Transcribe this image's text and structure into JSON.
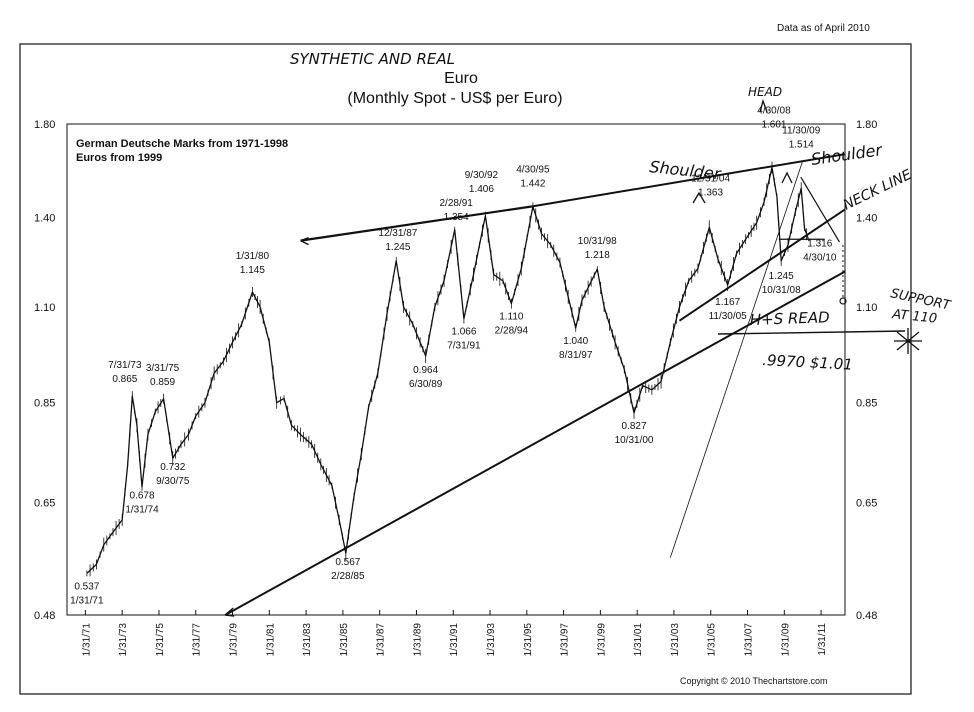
{
  "header": {
    "data_as_of": "Data as of April 2010"
  },
  "footer": {
    "copyright": "Copyright © 2010 Thechartstore.com"
  },
  "chart_data": {
    "type": "line",
    "title": "Euro",
    "subtitle": "(Monthly Spot - US$ per Euro)",
    "scale": "log",
    "ylim": [
      0.48,
      1.8
    ],
    "grid": false,
    "yticks": [
      "1.80",
      "1.40",
      "1.10",
      "0.85",
      "0.65",
      "0.48"
    ],
    "ytick_values": [
      1.8,
      1.4,
      1.1,
      0.85,
      0.65,
      0.48
    ],
    "xticks": [
      "1/31/71",
      "1/31/73",
      "1/31/75",
      "1/31/77",
      "1/31/79",
      "1/31/81",
      "1/31/83",
      "1/31/85",
      "1/31/87",
      "1/31/89",
      "1/31/91",
      "1/31/93",
      "1/31/95",
      "1/31/97",
      "1/31/99",
      "1/31/01",
      "1/31/03",
      "1/31/05",
      "1/31/07",
      "1/31/09",
      "1/31/11"
    ],
    "xtick_years": [
      1971,
      1973,
      1975,
      1977,
      1979,
      1981,
      1983,
      1985,
      1987,
      1989,
      1991,
      1993,
      1995,
      1997,
      1999,
      2001,
      2003,
      2005,
      2007,
      2009,
      2011
    ],
    "xlim": [
      1970.0,
      2012.3
    ],
    "legend_text": [
      "German Deutsche Marks from 1971-1998",
      "Euros from 1999"
    ],
    "series": [
      {
        "points": [
          [
            1971.08,
            0.537
          ],
          [
            1971.6,
            0.55
          ],
          [
            1972.0,
            0.58
          ],
          [
            1972.5,
            0.6
          ],
          [
            1973.0,
            0.62
          ],
          [
            1973.3,
            0.72
          ],
          [
            1973.55,
            0.865
          ],
          [
            1973.8,
            0.8
          ],
          [
            1974.08,
            0.678
          ],
          [
            1974.4,
            0.78
          ],
          [
            1974.8,
            0.83
          ],
          [
            1975.25,
            0.859
          ],
          [
            1975.75,
            0.732
          ],
          [
            1976.2,
            0.76
          ],
          [
            1976.6,
            0.78
          ],
          [
            1977.0,
            0.82
          ],
          [
            1977.5,
            0.85
          ],
          [
            1978.0,
            0.92
          ],
          [
            1978.5,
            0.95
          ],
          [
            1979.0,
            1.0
          ],
          [
            1979.5,
            1.05
          ],
          [
            1980.08,
            1.145
          ],
          [
            1980.5,
            1.1
          ],
          [
            1981.0,
            1.0
          ],
          [
            1981.4,
            0.85
          ],
          [
            1981.8,
            0.86
          ],
          [
            1982.2,
            0.8
          ],
          [
            1982.7,
            0.78
          ],
          [
            1983.3,
            0.76
          ],
          [
            1983.8,
            0.72
          ],
          [
            1984.4,
            0.68
          ],
          [
            1984.8,
            0.62
          ],
          [
            1985.16,
            0.567
          ],
          [
            1985.6,
            0.66
          ],
          [
            1986.0,
            0.74
          ],
          [
            1986.4,
            0.84
          ],
          [
            1986.9,
            0.92
          ],
          [
            1987.4,
            1.08
          ],
          [
            1987.9,
            1.245
          ],
          [
            1988.3,
            1.1
          ],
          [
            1988.8,
            1.05
          ],
          [
            1989.2,
            1.0
          ],
          [
            1989.5,
            0.964
          ],
          [
            1990.0,
            1.1
          ],
          [
            1990.5,
            1.18
          ],
          [
            1991.08,
            1.354
          ],
          [
            1991.58,
            1.066
          ],
          [
            1992.1,
            1.2
          ],
          [
            1992.75,
            1.406
          ],
          [
            1993.2,
            1.2
          ],
          [
            1993.7,
            1.18
          ],
          [
            1994.16,
            1.11
          ],
          [
            1994.7,
            1.22
          ],
          [
            1995.33,
            1.442
          ],
          [
            1995.8,
            1.34
          ],
          [
            1996.3,
            1.3
          ],
          [
            1996.8,
            1.24
          ],
          [
            1997.25,
            1.13
          ],
          [
            1997.66,
            1.04
          ],
          [
            1998.0,
            1.12
          ],
          [
            1998.83,
            1.218
          ],
          [
            1999.2,
            1.1
          ],
          [
            1999.8,
            1.0
          ],
          [
            2000.3,
            0.93
          ],
          [
            2000.83,
            0.827
          ],
          [
            2001.3,
            0.89
          ],
          [
            2001.8,
            0.88
          ],
          [
            2002.3,
            0.9
          ],
          [
            2002.8,
            1.0
          ],
          [
            2003.3,
            1.1
          ],
          [
            2003.8,
            1.18
          ],
          [
            2004.3,
            1.22
          ],
          [
            2004.92,
            1.363
          ],
          [
            2005.4,
            1.25
          ],
          [
            2005.92,
            1.167
          ],
          [
            2006.4,
            1.27
          ],
          [
            2006.9,
            1.32
          ],
          [
            2007.5,
            1.38
          ],
          [
            2007.9,
            1.46
          ],
          [
            2008.33,
            1.601
          ],
          [
            2008.6,
            1.48
          ],
          [
            2008.83,
            1.245
          ],
          [
            2009.2,
            1.3
          ],
          [
            2009.6,
            1.42
          ],
          [
            2009.92,
            1.514
          ],
          [
            2010.1,
            1.36
          ],
          [
            2010.33,
            1.316
          ]
        ]
      }
    ],
    "annotations": [
      {
        "lines": [
          "0.537",
          "1/31/71"
        ],
        "x": 1971.08,
        "y": 0.537
      },
      {
        "lines": [
          "7/31/73",
          "0.865"
        ],
        "x": 1973.58,
        "y": 0.865
      },
      {
        "lines": [
          "3/31/75",
          "0.859"
        ],
        "x": 1975.25,
        "y": 0.859
      },
      {
        "lines": [
          "0.678",
          "1/31/74"
        ],
        "x": 1974.08,
        "y": 0.678
      },
      {
        "lines": [
          "0.732",
          "9/30/75"
        ],
        "x": 1975.75,
        "y": 0.732
      },
      {
        "lines": [
          "1/31/80",
          "1.145"
        ],
        "x": 1980.08,
        "y": 1.145
      },
      {
        "lines": [
          "0.567",
          "2/28/85"
        ],
        "x": 1985.16,
        "y": 0.567
      },
      {
        "lines": [
          "12/31/87",
          "1.245"
        ],
        "x": 1987.99,
        "y": 1.245
      },
      {
        "lines": [
          "0.964",
          "6/30/89"
        ],
        "x": 1989.5,
        "y": 0.964
      },
      {
        "lines": [
          "2/28/91",
          "1.354"
        ],
        "x": 1991.16,
        "y": 1.354
      },
      {
        "lines": [
          "1.066",
          "7/31/91"
        ],
        "x": 1991.58,
        "y": 1.066
      },
      {
        "lines": [
          "9/30/92",
          "1.406"
        ],
        "x": 1992.75,
        "y": 1.406
      },
      {
        "lines": [
          "1.110",
          "2/28/94"
        ],
        "x": 1994.16,
        "y": 1.11
      },
      {
        "lines": [
          "4/30/95",
          "1.442"
        ],
        "x": 1995.33,
        "y": 1.442
      },
      {
        "lines": [
          "1.040",
          "8/31/97"
        ],
        "x": 1997.66,
        "y": 1.04
      },
      {
        "lines": [
          "10/31/98",
          "1.218"
        ],
        "x": 1998.83,
        "y": 1.218
      },
      {
        "lines": [
          "0.827",
          "10/31/00"
        ],
        "x": 2000.83,
        "y": 0.827
      },
      {
        "lines": [
          "12/31/04",
          "1.363"
        ],
        "x": 2004.99,
        "y": 1.363
      },
      {
        "lines": [
          "1.167",
          "11/30/05"
        ],
        "x": 2005.92,
        "y": 1.167
      },
      {
        "lines": [
          "4/30/08",
          "1.601"
        ],
        "x": 2008.33,
        "y": 1.601
      },
      {
        "lines": [
          "1.245",
          "10/31/08"
        ],
        "x": 2008.83,
        "y": 1.245
      },
      {
        "lines": [
          "11/30/09",
          "1.514"
        ],
        "x": 2009.92,
        "y": 1.514
      },
      {
        "lines": [
          "1.316",
          "4/30/10"
        ],
        "x": 2010.33,
        "y": 1.316
      }
    ],
    "handwritten": {
      "title_note": "SYNTHETIC AND REAL",
      "head": "HEAD",
      "shoulder_left": "Shoulder",
      "shoulder_right": "Shoulder",
      "neck_line": "NECK LINE",
      "support": [
        "SUPPORT",
        "AT 110"
      ],
      "hs_read": "H+S READ",
      "target": ".9970 $1.01"
    }
  }
}
